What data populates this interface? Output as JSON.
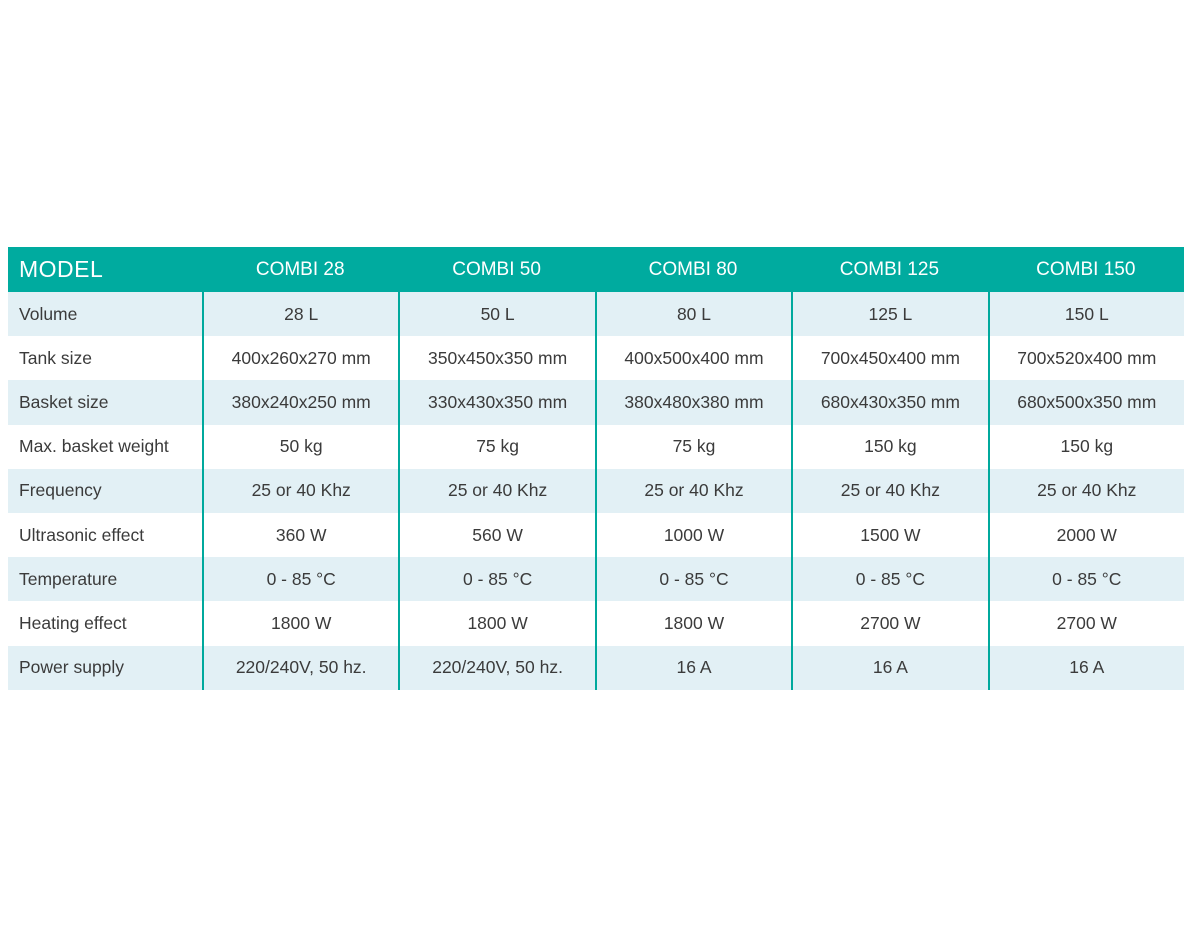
{
  "table": {
    "header": {
      "model_label": "MODEL",
      "columns": [
        "COMBI 28",
        "COMBI 50",
        "COMBI 80",
        "COMBI 125",
        "COMBI 150"
      ]
    },
    "rows": [
      {
        "label": "Volume",
        "values": [
          "28 L",
          "50 L",
          "80 L",
          "125 L",
          "150 L"
        ]
      },
      {
        "label": "Tank size",
        "values": [
          "400x260x270 mm",
          "350x450x350 mm",
          "400x500x400 mm",
          "700x450x400 mm",
          "700x520x400 mm"
        ]
      },
      {
        "label": "Basket size",
        "values": [
          "380x240x250 mm",
          "330x430x350 mm",
          "380x480x380 mm",
          "680x430x350 mm",
          "680x500x350 mm"
        ]
      },
      {
        "label": "Max. basket weight",
        "values": [
          "50 kg",
          "75 kg",
          "75 kg",
          "150 kg",
          "150 kg"
        ]
      },
      {
        "label": "Frequency",
        "values": [
          "25 or 40 Khz",
          "25 or 40 Khz",
          "25 or 40 Khz",
          "25 or 40 Khz",
          "25 or 40 Khz"
        ]
      },
      {
        "label": "Ultrasonic effect",
        "values": [
          "360 W",
          "560 W",
          "1000 W",
          "1500 W",
          "2000 W"
        ]
      },
      {
        "label": "Temperature",
        "values": [
          "0 - 85 °C",
          "0 - 85 °C",
          "0 - 85 °C",
          "0 - 85 °C",
          "0 - 85 °C"
        ]
      },
      {
        "label": "Heating effect",
        "values": [
          "1800 W",
          "1800 W",
          "1800 W",
          "2700 W",
          "2700 W"
        ]
      },
      {
        "label": "Power supply",
        "values": [
          "220/240V, 50 hz.",
          "220/240V, 50 hz.",
          "16 A",
          "16 A",
          "16 A"
        ]
      }
    ]
  },
  "colors": {
    "header_bg": "#00ab9f",
    "header_text": "#ffffff",
    "row_bg": "#ffffff",
    "row_alt_bg": "#e2f0f5",
    "separator": "#00a99d",
    "body_text": "#3b3b3b"
  }
}
